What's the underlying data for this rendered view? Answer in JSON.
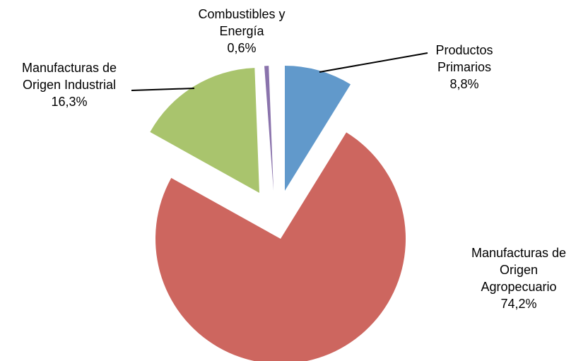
{
  "chart_data": {
    "type": "pie",
    "exploded": true,
    "legend": "none",
    "slices": [
      {
        "name": "Productos Primarios",
        "label_lines": [
          "Productos",
          "Primarios"
        ],
        "value": 8.8,
        "value_label": "8,8%",
        "color": "#6199CB"
      },
      {
        "name": "Manufacturas de Origen Agropecuario",
        "label_lines": [
          "Manufacturas de",
          "Origen",
          "Agropecuario"
        ],
        "value": 74.2,
        "value_label": "74,2%",
        "color": "#CD665F"
      },
      {
        "name": "Manufacturas de Origen Industrial",
        "label_lines": [
          "Manufacturas de",
          "Origen Industrial"
        ],
        "value": 16.3,
        "value_label": "16,3%",
        "color": "#A9C46D"
      },
      {
        "name": "Combustibles y Energía",
        "label_lines": [
          "Combustibles y",
          "Energía"
        ],
        "value": 0.6,
        "value_label": "0,6%",
        "color": "#8A73AC"
      }
    ]
  }
}
